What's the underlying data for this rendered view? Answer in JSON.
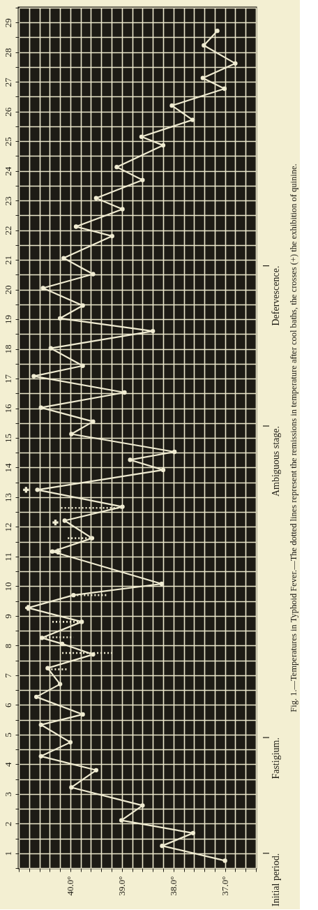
{
  "chart_data": {
    "type": "line",
    "title": "Fig. 1.—Temperatures in Typhoid Fever.—The dotted lines represent the remissions in temperature after cool baths, the crosses (+) the exhibition of quinine.",
    "ylim": [
      0.5,
      29.5
    ],
    "xlim": [
      41.0,
      36.4
    ],
    "yticks": [
      {
        "value": 0.5,
        "label": null
      },
      1,
      {
        "value": 1.5,
        "label": null
      },
      2,
      {
        "value": 2.5,
        "label": null
      },
      3,
      {
        "value": 3.5,
        "label": null
      },
      4,
      {
        "value": 4.5,
        "label": null
      },
      5,
      {
        "value": 5.5,
        "label": null
      },
      6,
      {
        "value": 6.5,
        "label": null
      },
      7,
      {
        "value": 7.5,
        "label": null
      },
      8,
      {
        "value": 8.5,
        "label": null
      },
      9,
      {
        "value": 9.5,
        "label": null
      },
      10,
      {
        "value": 10.5,
        "label": null
      },
      11,
      {
        "value": 11.5,
        "label": null
      },
      12,
      {
        "value": 12.5,
        "label": null
      },
      13,
      {
        "value": 13.5,
        "label": null
      },
      14,
      {
        "value": 14.5,
        "label": null
      },
      15,
      {
        "value": 15.5,
        "label": null
      },
      16,
      {
        "value": 16.5,
        "label": null
      },
      17,
      {
        "value": 17.5,
        "label": null
      },
      18,
      {
        "value": 18.5,
        "label": null
      },
      19,
      {
        "value": 19.5,
        "label": null
      },
      20,
      {
        "value": 20.5,
        "label": null
      },
      21,
      {
        "value": 21.5,
        "label": null
      },
      22,
      {
        "value": 22.5,
        "label": null
      },
      23,
      {
        "value": 23.5,
        "label": null
      },
      24,
      {
        "value": 24.5,
        "label": null
      },
      25,
      {
        "value": 25.5,
        "label": null
      },
      26,
      {
        "value": 26.5,
        "label": null
      },
      27,
      {
        "value": 27.5,
        "label": null
      },
      28,
      {
        "value": 28.5,
        "label": null
      },
      29,
      {
        "value": 29.5,
        "label": null
      }
    ],
    "xticks": [
      {
        "value": 41.0,
        "label": null
      },
      {
        "value": 40.8,
        "label": null
      },
      {
        "value": 40.6,
        "label": null
      },
      {
        "value": 40.4,
        "label": null
      },
      {
        "value": 40.2,
        "label": null
      },
      {
        "value": 40,
        "label": "40.0°"
      },
      {
        "value": 39.8,
        "label": null
      },
      {
        "value": 39.6,
        "label": null
      },
      {
        "value": 39.4,
        "label": null
      },
      {
        "value": 39.2,
        "label": null
      },
      {
        "value": 39,
        "label": "39.0°"
      },
      {
        "value": 38.8,
        "label": null
      },
      {
        "value": 38.6,
        "label": null
      },
      {
        "value": 38.4,
        "label": null
      },
      {
        "value": 38.2,
        "label": null
      },
      {
        "value": 38,
        "label": "38.0°"
      },
      {
        "value": 37.8,
        "label": null
      },
      {
        "value": 37.6,
        "label": null
      },
      {
        "value": 37.4,
        "label": null
      },
      {
        "value": 37.2,
        "label": null
      },
      {
        "value": 37,
        "label": "37.0°"
      },
      {
        "value": 36.8,
        "label": null
      },
      {
        "value": 36.6,
        "label": null
      },
      {
        "value": 36.4,
        "label": null
      }
    ],
    "grid": true,
    "series": [
      {
        "type": "line",
        "color": "#f0ecd2",
        "marker": "circle",
        "line_style": "solid",
        "values": [
          0.75,
          1.25,
          1.68,
          2.11,
          2.61,
          3.22,
          3.8,
          4.27,
          4.74,
          5.33,
          5.68,
          6.27,
          6.7,
          7.24,
          7.7,
          8.06,
          8.26,
          8.8,
          9.27,
          9.7,
          10.08,
          11.17,
          11.62,
          12.21,
          12.68,
          13.25,
          13.92,
          14.26,
          14.53,
          15.13,
          15.55,
          16.02,
          16.53,
          17.08,
          17.43,
          18.02,
          18.6,
          19.03,
          19.46,
          20.05,
          20.52,
          21.06,
          21.8,
          22.12,
          22.71,
          23.08,
          23.69,
          24.13,
          24.86,
          25.15,
          25.72,
          26.2,
          26.77,
          27.13,
          27.62,
          28.23,
          28.72
        ],
        "x": [
          37.0,
          38.22,
          37.62,
          39.01,
          38.6,
          39.98,
          39.5,
          40.57,
          40.0,
          40.57,
          39.76,
          40.66,
          40.2,
          40.44,
          39.56,
          40.16,
          40.55,
          39.78,
          40.82,
          39.94,
          38.23,
          40.35,
          39.58,
          40.11,
          38.99,
          40.64,
          38.2,
          38.84,
          37.98,
          39.98,
          39.56,
          40.57,
          38.95,
          40.71,
          39.76,
          40.38,
          38.4,
          40.2,
          39.76,
          40.53,
          39.56,
          40.13,
          39.19,
          39.89,
          38.99,
          39.5,
          38.6,
          39.1,
          38.2,
          38.62,
          37.63,
          38.03,
          37.01,
          37.43,
          36.8,
          37.41,
          37.15
        ]
      },
      {
        "type": "line",
        "color": "#f0ecd2",
        "line_style": "dotted",
        "values": [
          7.2,
          7.2,
          null,
          7.75,
          7.75,
          null,
          8.28,
          8.28,
          null,
          8.8,
          8.8,
          null,
          9.7,
          9.7,
          null,
          11.62,
          11.62,
          null,
          12.64,
          12.64
        ],
        "x": [
          40.44,
          40.05,
          null,
          40.16,
          39.17,
          null,
          40.55,
          39.94,
          null,
          40.35,
          39.78,
          null,
          39.94,
          39.28,
          null,
          40.05,
          39.58,
          null,
          40.18,
          38.99
        ]
      },
      {
        "type": "scatter",
        "color": "#f0ecd2",
        "marker": "cross",
        "values": [
          9.27,
          11.17,
          12.15,
          13.25
        ],
        "x": [
          40.82,
          40.24,
          40.29,
          40.86
        ]
      }
    ],
    "ref_lines": [
      {
        "axis": "y",
        "value": 1,
        "label": "Initial period."
      },
      {
        "axis": "y",
        "value": 4.9,
        "label": "Fastigium."
      },
      {
        "axis": "y",
        "value": 15.4,
        "label": "Ambiguous stage."
      },
      {
        "axis": "y",
        "value": 20.8,
        "label": "Defervescence."
      }
    ]
  }
}
